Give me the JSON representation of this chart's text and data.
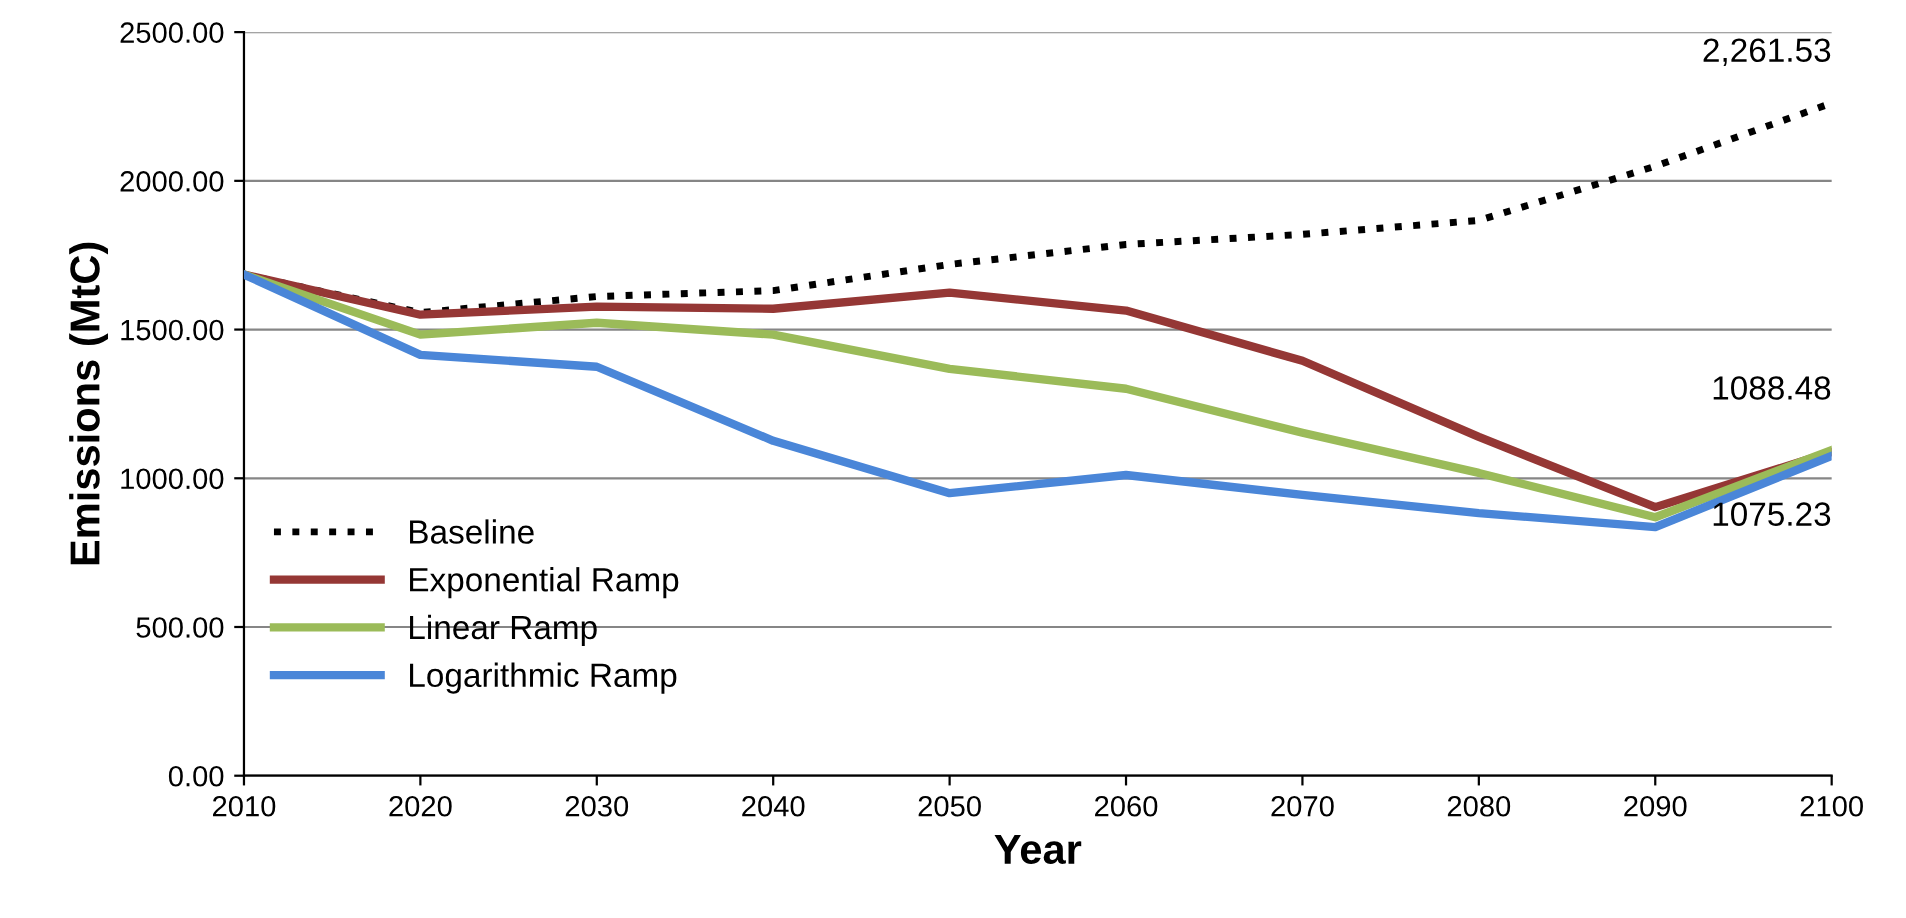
{
  "chart_data": {
    "type": "line",
    "xlabel": "Year",
    "ylabel": "Emissions (MtC)",
    "x": [
      2010,
      2020,
      2030,
      2040,
      2050,
      2060,
      2070,
      2080,
      2090,
      2100
    ],
    "xlim": [
      2010,
      2100
    ],
    "xticks": [
      2010,
      2020,
      2030,
      2040,
      2050,
      2060,
      2070,
      2080,
      2090,
      2100
    ],
    "ylim": [
      0,
      2500
    ],
    "yticks": [
      {
        "value": 0,
        "label": "0.00"
      },
      {
        "value": 500,
        "label": "500.00"
      },
      {
        "value": 1000,
        "label": "1000.00"
      },
      {
        "value": 1500,
        "label": "1500.00"
      },
      {
        "value": 2000,
        "label": "2000.00"
      },
      {
        "value": 2500,
        "label": "2500.00"
      }
    ],
    "grid": "y",
    "legend": "bottom left",
    "marker": "none",
    "series": [
      {
        "name": "Baseline",
        "color": "#000000",
        "line_style": "dotted",
        "values": [
          1685,
          1557,
          1611,
          1631,
          1719,
          1786,
          1820,
          1867,
          2049,
          2261.53
        ],
        "value_labels": [
          null,
          null,
          null,
          null,
          null,
          null,
          null,
          null,
          null,
          "2,261.53"
        ]
      },
      {
        "name": "Exponential Ramp",
        "color": "#953735",
        "line_style": "solid",
        "values": [
          1685,
          1550,
          1577,
          1570,
          1624,
          1564,
          1395,
          1139,
          903,
          1088.48
        ],
        "value_labels": [
          null,
          null,
          null,
          null,
          null,
          null,
          null,
          null,
          null,
          "1088.48"
        ]
      },
      {
        "name": "Linear Ramp",
        "color": "#9bbb59",
        "line_style": "solid",
        "values": [
          1685,
          1483,
          1523,
          1483,
          1368,
          1301,
          1153,
          1018,
          869,
          1095
        ]
      },
      {
        "name": "Logarithmic Ramp",
        "color": "#4a86d8",
        "line_style": "solid",
        "values": [
          1685,
          1415,
          1375,
          1126,
          950,
          1011,
          944,
          883,
          836,
          1075.23
        ],
        "value_labels": [
          null,
          null,
          null,
          null,
          null,
          null,
          null,
          null,
          null,
          "1075.23"
        ]
      }
    ]
  }
}
